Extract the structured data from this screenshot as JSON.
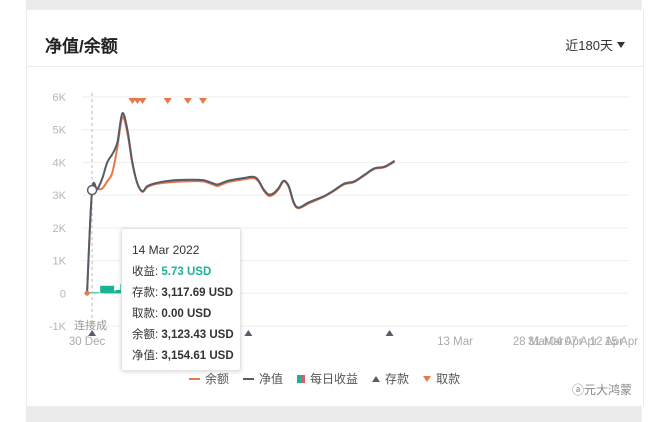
{
  "card": {
    "title": "净值/余额",
    "range_label": "近180天"
  },
  "chart_data": {
    "type": "line",
    "title": "净值/余额",
    "ylim": [
      -1000,
      6000
    ],
    "y_ticks": [
      "6K",
      "5K",
      "4K",
      "3K",
      "2K",
      "1K",
      "0",
      "-1K"
    ],
    "y_tick_values": [
      6000,
      5000,
      4000,
      3000,
      2000,
      1000,
      0,
      -1000
    ],
    "x_ticks": [
      {
        "label": "30 Dec",
        "day": 0
      },
      {
        "label": "13 Mar",
        "day": 73
      },
      {
        "label": "28 Mar",
        "day": 88
      },
      {
        "label": "31 Mar",
        "day": 91
      },
      {
        "label": "04 Apr",
        "day": 95
      },
      {
        "label": "07 Apr",
        "day": 98
      },
      {
        "label": "12 Apr",
        "day": 103
      },
      {
        "label": "15 Apr",
        "day": 106
      }
    ],
    "x_range": [
      -1,
      107.5
    ],
    "series": [
      {
        "name": "余额",
        "color": "#e8784a",
        "points": [
          [
            0,
            0
          ],
          [
            1,
            3120
          ],
          [
            2,
            3180
          ],
          [
            3,
            3200
          ],
          [
            4,
            3420
          ],
          [
            5,
            3680
          ],
          [
            6,
            4450
          ],
          [
            7,
            5380
          ],
          [
            8,
            4900
          ],
          [
            9,
            3950
          ],
          [
            10,
            3350
          ],
          [
            11,
            3100
          ],
          [
            12,
            3250
          ],
          [
            14,
            3350
          ],
          [
            17,
            3400
          ],
          [
            20,
            3420
          ],
          [
            23,
            3420
          ],
          [
            25,
            3320
          ],
          [
            26,
            3280
          ],
          [
            28,
            3400
          ],
          [
            31,
            3480
          ],
          [
            33,
            3520
          ],
          [
            34,
            3420
          ],
          [
            35,
            3150
          ],
          [
            36,
            2980
          ],
          [
            37,
            3020
          ],
          [
            38,
            3180
          ],
          [
            39,
            3420
          ],
          [
            40,
            3250
          ],
          [
            41,
            2750
          ],
          [
            42,
            2600
          ],
          [
            44,
            2750
          ],
          [
            47,
            2950
          ],
          [
            49,
            3130
          ],
          [
            51,
            3330
          ],
          [
            53,
            3400
          ],
          [
            55,
            3600
          ],
          [
            57,
            3800
          ],
          [
            59,
            3850
          ],
          [
            61,
            4020
          ]
        ]
      },
      {
        "name": "净值",
        "color": "#555d6a",
        "points": [
          [
            0,
            0
          ],
          [
            1,
            3154.61
          ],
          [
            2,
            3180
          ],
          [
            3,
            3500
          ],
          [
            4,
            4000
          ],
          [
            5,
            4250
          ],
          [
            6,
            4600
          ],
          [
            7,
            5500
          ],
          [
            8,
            5000
          ],
          [
            9,
            4000
          ],
          [
            10,
            3350
          ],
          [
            11,
            3120
          ],
          [
            12,
            3280
          ],
          [
            14,
            3380
          ],
          [
            17,
            3450
          ],
          [
            20,
            3470
          ],
          [
            23,
            3460
          ],
          [
            25,
            3360
          ],
          [
            26,
            3330
          ],
          [
            28,
            3440
          ],
          [
            31,
            3520
          ],
          [
            33,
            3560
          ],
          [
            34,
            3450
          ],
          [
            35,
            3180
          ],
          [
            36,
            3020
          ],
          [
            37,
            3060
          ],
          [
            38,
            3220
          ],
          [
            39,
            3440
          ],
          [
            40,
            3280
          ],
          [
            41,
            2780
          ],
          [
            42,
            2620
          ],
          [
            44,
            2780
          ],
          [
            47,
            2970
          ],
          [
            49,
            3150
          ],
          [
            51,
            3350
          ],
          [
            53,
            3420
          ],
          [
            55,
            3620
          ],
          [
            57,
            3820
          ],
          [
            59,
            3870
          ],
          [
            61,
            4050
          ]
        ]
      },
      {
        "name": "每日收益",
        "type": "bar",
        "color": "#1ab394",
        "points": [
          [
            1,
            5.73
          ],
          [
            4,
            230
          ],
          [
            5,
            60
          ],
          [
            7,
            100
          ],
          [
            8,
            280
          ],
          [
            9,
            90
          ],
          [
            10,
            110
          ],
          [
            11,
            280
          ],
          [
            12,
            100
          ],
          [
            13,
            280
          ],
          [
            14,
            100
          ],
          [
            15,
            110
          ],
          [
            18,
            170
          ],
          [
            19,
            520
          ],
          [
            20,
            390
          ],
          [
            21,
            300
          ],
          [
            22,
            370
          ],
          [
            23,
            360
          ],
          [
            24,
            360
          ],
          [
            25,
            360
          ],
          [
            26,
            100
          ],
          [
            27,
            530
          ],
          [
            29,
            320
          ]
        ]
      }
    ],
    "deposits": [
      1,
      32,
      60
    ],
    "withdrawals": [
      9,
      10,
      11,
      16,
      20,
      23
    ],
    "legend": [
      "余额",
      "净值",
      "每日收益",
      "存款",
      "取款"
    ],
    "crosshair_label": "连接成"
  },
  "tooltip": {
    "date": "14 Mar 2022",
    "income_label": "收益:",
    "income_value": "5.73 USD",
    "deposit_label": "存款:",
    "deposit_value": "3,117.69 USD",
    "withdraw_label": "取款:",
    "withdraw_value": "0.00 USD",
    "balance_label": "余额:",
    "balance_value": "3,123.43 USD",
    "net_label": "净值:",
    "net_value": "3,154.61 USD"
  },
  "legend": {
    "balance": "余额",
    "net": "净值",
    "daily": "每日收益",
    "deposit": "存款",
    "withdraw": "取款"
  },
  "watermark": "元大鸿蒙",
  "colors": {
    "accent": "#1ab394",
    "balance": "#e8784a",
    "net": "#555d6a"
  }
}
